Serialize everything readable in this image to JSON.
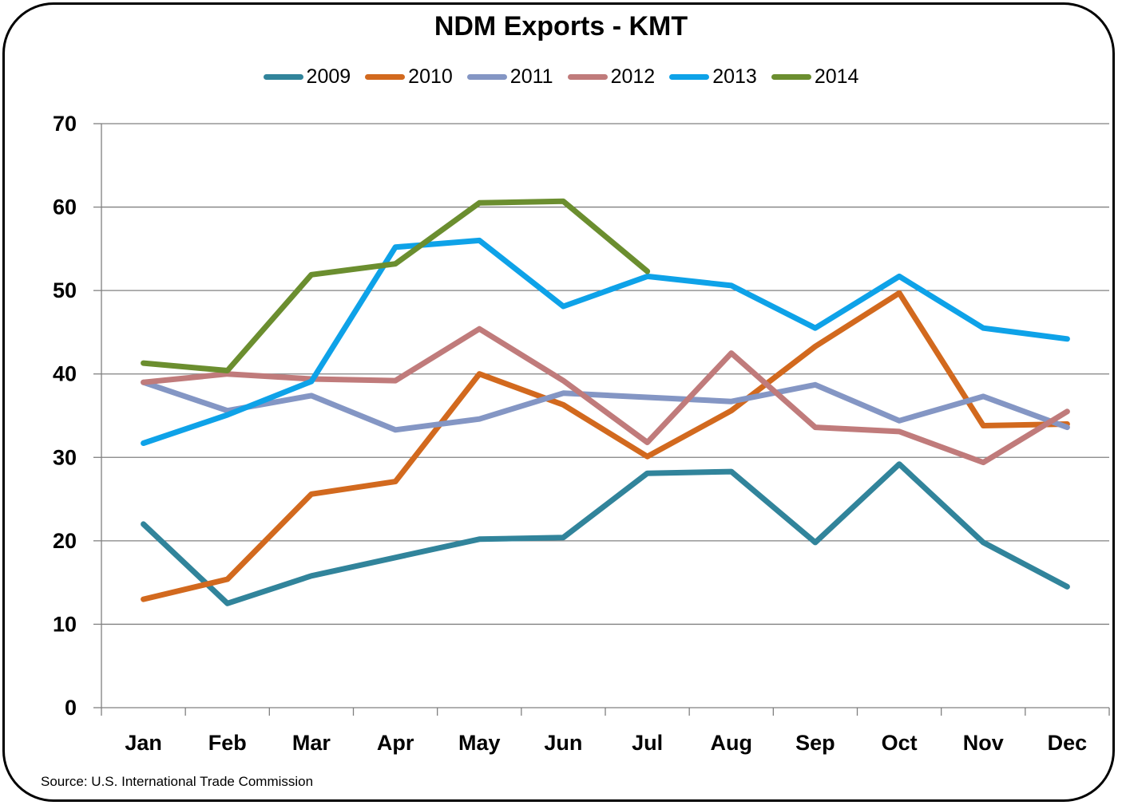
{
  "chart_data": {
    "type": "line",
    "title": "NDM Exports - KMT",
    "xlabel": "",
    "ylabel": "",
    "categories": [
      "Jan",
      "Feb",
      "Mar",
      "Apr",
      "May",
      "Jun",
      "Jul",
      "Aug",
      "Sep",
      "Oct",
      "Nov",
      "Dec"
    ],
    "ylim": [
      0,
      70
    ],
    "yticks": [
      0,
      10,
      20,
      30,
      40,
      50,
      60,
      70
    ],
    "grid": true,
    "legend_position": "top",
    "series": [
      {
        "name": "2009",
        "color": "#31849b",
        "values": [
          22,
          12.5,
          15.8,
          18,
          20.2,
          20.4,
          28.1,
          28.3,
          19.8,
          29.2,
          19.8,
          14.5
        ]
      },
      {
        "name": "2010",
        "color": "#d2691e",
        "values": [
          13,
          15.4,
          25.6,
          27.1,
          40,
          36.3,
          30.1,
          35.6,
          43.3,
          49.7,
          33.8,
          34
        ]
      },
      {
        "name": "2011",
        "color": "#8496c4",
        "values": [
          39,
          35.6,
          37.4,
          33.3,
          34.6,
          37.7,
          37.2,
          36.7,
          38.7,
          34.4,
          37.3,
          33.6
        ]
      },
      {
        "name": "2012",
        "color": "#c07b7b",
        "values": [
          39,
          40,
          39.4,
          39.2,
          45.4,
          39.2,
          31.8,
          42.5,
          33.6,
          33.1,
          29.4,
          35.5
        ]
      },
      {
        "name": "2013",
        "color": "#0ea2e8",
        "values": [
          31.7,
          35.1,
          39.1,
          55.2,
          56,
          48.1,
          51.7,
          50.6,
          45.5,
          51.7,
          45.5,
          44.2
        ]
      },
      {
        "name": "2014",
        "color": "#6b8e2f",
        "values": [
          41.3,
          40.4,
          51.9,
          53.2,
          60.5,
          60.7,
          52.3,
          null,
          null,
          null,
          null,
          null
        ]
      }
    ]
  },
  "source_note": "Source: U.S. International Trade Commission"
}
